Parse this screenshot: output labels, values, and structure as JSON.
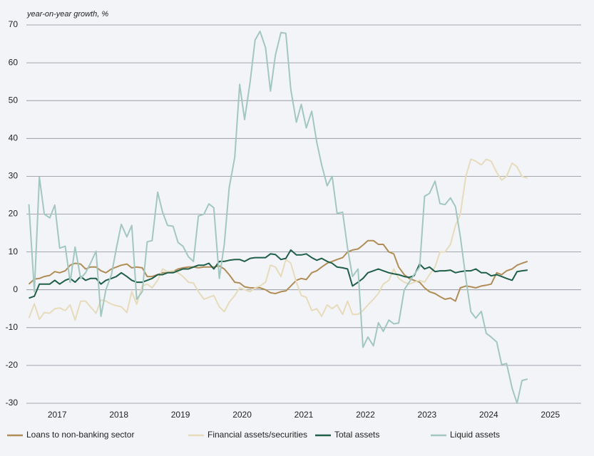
{
  "chart_data": {
    "type": "line",
    "y_axis_label": "year-on-year growth, %",
    "x": [
      2017.04,
      2017.13,
      2017.21,
      2017.29,
      2017.38,
      2017.46,
      2017.54,
      2017.63,
      2017.71,
      2017.79,
      2017.88,
      2017.96,
      2018.04,
      2018.13,
      2018.21,
      2018.29,
      2018.38,
      2018.46,
      2018.54,
      2018.63,
      2018.71,
      2018.79,
      2018.88,
      2018.96,
      2019.04,
      2019.13,
      2019.21,
      2019.29,
      2019.38,
      2019.46,
      2019.54,
      2019.63,
      2019.71,
      2019.79,
      2019.88,
      2019.96,
      2020.04,
      2020.13,
      2020.21,
      2020.29,
      2020.38,
      2020.46,
      2020.54,
      2020.63,
      2020.71,
      2020.79,
      2020.88,
      2020.96,
      2021.04,
      2021.13,
      2021.21,
      2021.29,
      2021.38,
      2021.46,
      2021.54,
      2021.63,
      2021.71,
      2021.79,
      2021.88,
      2021.96,
      2022.04,
      2022.13,
      2022.21,
      2022.29,
      2022.38,
      2022.46,
      2022.54,
      2022.63,
      2022.71,
      2022.79,
      2022.88,
      2022.96,
      2023.04,
      2023.13,
      2023.21,
      2023.29,
      2023.38,
      2023.46,
      2023.54,
      2023.63,
      2023.71,
      2023.79,
      2023.88,
      2023.96,
      2024.04,
      2024.13,
      2024.21,
      2024.29,
      2024.38,
      2024.46,
      2024.54,
      2024.63,
      2024.71,
      2024.79,
      2024.88,
      2024.96,
      2025.04,
      2025.13
    ],
    "series": [
      {
        "name": "Loans to non-banking sector",
        "color": "#b08d57",
        "values": [
          1.5,
          2.8,
          3,
          3.5,
          3.8,
          4.8,
          4.5,
          5,
          6.5,
          7,
          6.8,
          5.5,
          6,
          6,
          5,
          4.5,
          5.5,
          6,
          6.5,
          6.8,
          5.8,
          6,
          5.8,
          3.5,
          3.5,
          4,
          4.5,
          4.5,
          4.8,
          5.5,
          5.8,
          6,
          6,
          5.8,
          6,
          6,
          6,
          6.3,
          5.5,
          4,
          2,
          1.8,
          0.8,
          0.5,
          0.5,
          0.5,
          0,
          -0.8,
          -1,
          -0.5,
          -0.3,
          1,
          2.5,
          3,
          2.7,
          4.5,
          5,
          6,
          7,
          7.5,
          8,
          8.5,
          10,
          10.5,
          10.8,
          11.8,
          13,
          13,
          12,
          12,
          10,
          9.5,
          6,
          4,
          3,
          2.5,
          2,
          0.5,
          -0.5,
          -1,
          -1.8,
          -2.5,
          -2.2,
          -3,
          0.5,
          1,
          0.8,
          0.5,
          1,
          1.2,
          1.5,
          4.5,
          4,
          5,
          5.5,
          6.5,
          7,
          7.5
        ]
      },
      {
        "name": "Financial assets/securities",
        "color": "#e6dbbb",
        "values": [
          -7.5,
          -3.7,
          -7.8,
          -6,
          -6.2,
          -5,
          -4.8,
          -5.5,
          -4,
          -8,
          -3,
          -3,
          -4.5,
          -6.2,
          -2.7,
          -3,
          -3.8,
          -4.2,
          -4.5,
          -6,
          -0.5,
          -3.8,
          1,
          1.5,
          0.5,
          2.5,
          5.5,
          4.8,
          5,
          4.5,
          3.5,
          2,
          1.8,
          -0.5,
          -2.5,
          -2,
          -1.5,
          -4.5,
          -5.8,
          -3.3,
          -1.5,
          0.5,
          0,
          -0.5,
          0.5,
          1,
          2,
          6.5,
          6,
          3.5,
          8,
          7,
          2,
          -1.5,
          -2,
          -5.5,
          -5,
          -7,
          -4,
          -5,
          -4,
          -6.5,
          -3,
          -6.5,
          -6.5,
          -5.5,
          -4,
          -2.5,
          -1,
          1.5,
          2.5,
          5.5,
          3,
          2,
          1.5,
          2,
          2.5,
          2,
          4,
          6,
          10,
          10,
          12,
          17,
          20,
          30,
          34.5,
          34,
          33,
          34.5,
          34,
          31,
          29,
          30,
          33.5,
          32.5,
          30,
          29.5
        ]
      },
      {
        "name": "Total assets",
        "color": "#1f5e47",
        "values": [
          -2.2,
          -1.7,
          1.5,
          1.5,
          1.5,
          2.5,
          1.5,
          2.5,
          3,
          2,
          3.5,
          2.5,
          3,
          3,
          1.5,
          2.5,
          3,
          3.5,
          4.5,
          3.5,
          2.5,
          2,
          2,
          2.5,
          3,
          4,
          4,
          4.5,
          4.5,
          5,
          5.5,
          5.5,
          6,
          6.5,
          6.5,
          7,
          5.5,
          7.5,
          7.5,
          7.8,
          8,
          8,
          7.5,
          8.3,
          8.5,
          8.5,
          8.5,
          9.5,
          9.3,
          8,
          8.3,
          10.5,
          9.2,
          9.2,
          9.5,
          8.5,
          7.8,
          8.3,
          7.5,
          7,
          6,
          5.8,
          5.5,
          1,
          2,
          3,
          4.5,
          5,
          5.5,
          5,
          4.5,
          4.2,
          4,
          3.5,
          3.3,
          3.7,
          6.8,
          5.5,
          6,
          4.8,
          5,
          5,
          5.2,
          4.5,
          4.8,
          5,
          5,
          5.5,
          4.5,
          4.5,
          3.7,
          4,
          3.5,
          3,
          2.5,
          4.8,
          5,
          5.2
        ]
      },
      {
        "name": "Liquid assets",
        "color": "#a2c7c0",
        "values": [
          22.6,
          -0.5,
          29.8,
          20,
          19,
          22.4,
          11,
          11.5,
          2,
          11.3,
          3,
          4.5,
          7,
          10.2,
          -7,
          0,
          4,
          11,
          17.3,
          14,
          17,
          -2.5,
          -0.5,
          12.7,
          13,
          25.8,
          20.5,
          17,
          16.8,
          12.5,
          11.5,
          8.7,
          7.5,
          19.5,
          20,
          22.7,
          21.7,
          3,
          12,
          27,
          35,
          54.3,
          45,
          55,
          66,
          68.3,
          64,
          52.5,
          62,
          68,
          67.8,
          53,
          44.3,
          49,
          42.8,
          47.2,
          39,
          33,
          27.5,
          30,
          20.2,
          20.5,
          11,
          3.5,
          5.5,
          -15.2,
          -12.5,
          -14.8,
          -8.7,
          -11,
          -8,
          -9,
          -8.8,
          0,
          2,
          4,
          6,
          24.7,
          25.5,
          28.7,
          22.8,
          22.5,
          24.3,
          22,
          14,
          3,
          -5.8,
          -7.5,
          -5.7,
          -11.5,
          -12.5,
          -13.8,
          -19.8,
          -19.5,
          -26,
          -30,
          -24,
          -23.6
        ]
      }
    ],
    "xlim": [
      2017,
      2026
    ],
    "xticks": [
      {
        "value": 2017.5,
        "label": "2017"
      },
      {
        "value": 2018.5,
        "label": "2018"
      },
      {
        "value": 2019.5,
        "label": "2019"
      },
      {
        "value": 2020.5,
        "label": "2020"
      },
      {
        "value": 2021.5,
        "label": "2021"
      },
      {
        "value": 2022.5,
        "label": "2022"
      },
      {
        "value": 2023.5,
        "label": "2023"
      },
      {
        "value": 2024.5,
        "label": "2024"
      },
      {
        "value": 2025.5,
        "label": "2025"
      }
    ],
    "ylim": [
      -30,
      70
    ],
    "yticks": [
      -30,
      -20,
      -10,
      0,
      10,
      20,
      30,
      40,
      50,
      60,
      70
    ],
    "grid": true,
    "legend": "bottom"
  }
}
